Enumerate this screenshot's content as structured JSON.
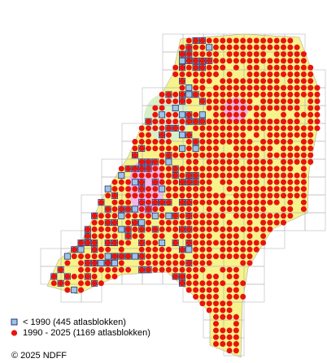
{
  "legend": [
    {
      "label": "< 1990   (445 atlasblokken)"
    },
    {
      "label": "1990 - 2025 (1169 atlasblokken)"
    }
  ],
  "copyright": "© 2025 NDFF"
}
